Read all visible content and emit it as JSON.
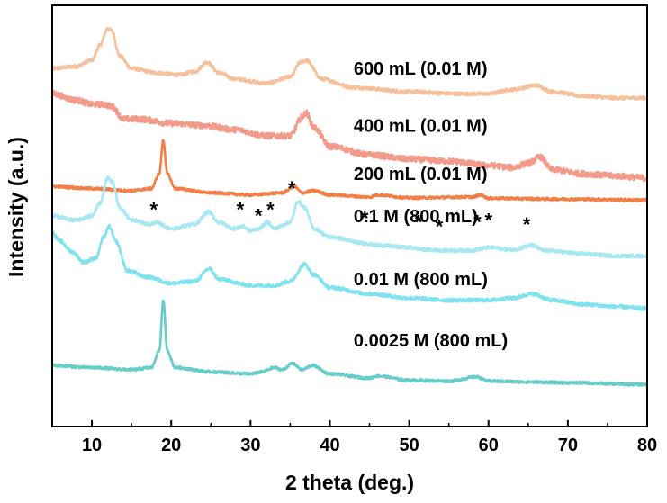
{
  "chart_data": {
    "type": "line",
    "title": "",
    "xlabel": "2 theta (deg.)",
    "ylabel": "Intensity (a.u.)",
    "xlim": [
      5,
      80
    ],
    "xticks": [
      10,
      20,
      30,
      40,
      50,
      60,
      70,
      80
    ],
    "ylim": [
      0,
      1
    ],
    "y_ticks_shown": false,
    "grid": false,
    "legend": "none; each curve is labeled directly",
    "series": [
      {
        "name": "600 mL (0.01 M)",
        "color": "#f7c09c",
        "noise": 0.004,
        "points": [
          [
            5,
            0.85
          ],
          [
            8,
            0.855
          ],
          [
            10,
            0.87
          ],
          [
            11,
            0.905
          ],
          [
            12,
            0.945
          ],
          [
            12.5,
            0.94
          ],
          [
            13.5,
            0.88
          ],
          [
            15,
            0.85
          ],
          [
            18,
            0.84
          ],
          [
            21,
            0.835
          ],
          [
            23,
            0.843
          ],
          [
            24.5,
            0.865
          ],
          [
            26,
            0.84
          ],
          [
            28,
            0.825
          ],
          [
            32,
            0.815
          ],
          [
            35,
            0.83
          ],
          [
            36.3,
            0.865
          ],
          [
            37,
            0.87
          ],
          [
            39,
            0.825
          ],
          [
            43,
            0.805
          ],
          [
            50,
            0.795
          ],
          [
            56,
            0.79
          ],
          [
            60,
            0.79
          ],
          [
            63,
            0.8
          ],
          [
            66,
            0.81
          ],
          [
            68,
            0.795
          ],
          [
            72,
            0.785
          ],
          [
            76,
            0.78
          ],
          [
            80,
            0.78
          ]
        ]
      },
      {
        "name": "400 mL (0.01 M)",
        "color": "#f29b8a",
        "noise": 0.007,
        "points": [
          [
            5,
            0.79
          ],
          [
            8,
            0.775
          ],
          [
            10,
            0.765
          ],
          [
            11.5,
            0.765
          ],
          [
            12.5,
            0.76
          ],
          [
            14,
            0.73
          ],
          [
            16,
            0.73
          ],
          [
            20,
            0.72
          ],
          [
            24,
            0.715
          ],
          [
            28,
            0.705
          ],
          [
            32,
            0.69
          ],
          [
            35,
            0.69
          ],
          [
            36.5,
            0.735
          ],
          [
            37,
            0.745
          ],
          [
            38,
            0.71
          ],
          [
            40,
            0.665
          ],
          [
            45,
            0.645
          ],
          [
            50,
            0.635
          ],
          [
            55,
            0.63
          ],
          [
            60,
            0.62
          ],
          [
            63,
            0.615
          ],
          [
            65,
            0.625
          ],
          [
            66.5,
            0.64
          ],
          [
            68,
            0.61
          ],
          [
            72,
            0.6
          ],
          [
            76,
            0.595
          ],
          [
            80,
            0.59
          ]
        ]
      },
      {
        "name": "200 mL (0.01 M)",
        "color": "#f27e45",
        "noise": 0.003,
        "points": [
          [
            5,
            0.57
          ],
          [
            10,
            0.565
          ],
          [
            15,
            0.56
          ],
          [
            17.5,
            0.565
          ],
          [
            18.5,
            0.6
          ],
          [
            19,
            0.68
          ],
          [
            19.5,
            0.6
          ],
          [
            20.5,
            0.565
          ],
          [
            25,
            0.555
          ],
          [
            30,
            0.55
          ],
          [
            34,
            0.555
          ],
          [
            35.5,
            0.57
          ],
          [
            36.5,
            0.555
          ],
          [
            38,
            0.56
          ],
          [
            40,
            0.55
          ],
          [
            45,
            0.545
          ],
          [
            46,
            0.55
          ],
          [
            50,
            0.543
          ],
          [
            58,
            0.545
          ],
          [
            59,
            0.55
          ],
          [
            60,
            0.542
          ],
          [
            70,
            0.54
          ],
          [
            80,
            0.538
          ]
        ]
      },
      {
        "name": "0.1 M (800 mL)",
        "color": "#a8e8f2",
        "noise": 0.004,
        "points": [
          [
            5,
            0.5
          ],
          [
            8,
            0.49
          ],
          [
            10,
            0.5
          ],
          [
            11,
            0.53
          ],
          [
            12,
            0.59
          ],
          [
            12.6,
            0.58
          ],
          [
            13.5,
            0.52
          ],
          [
            15,
            0.49
          ],
          [
            17.5,
            0.48
          ],
          [
            18,
            0.485
          ],
          [
            20,
            0.47
          ],
          [
            23,
            0.48
          ],
          [
            24.7,
            0.51
          ],
          [
            26,
            0.485
          ],
          [
            28,
            0.47
          ],
          [
            29,
            0.475
          ],
          [
            30,
            0.465
          ],
          [
            31,
            0.47
          ],
          [
            32.2,
            0.485
          ],
          [
            33,
            0.47
          ],
          [
            35,
            0.485
          ],
          [
            36,
            0.535
          ],
          [
            36.8,
            0.52
          ],
          [
            38,
            0.47
          ],
          [
            40,
            0.45
          ],
          [
            44.5,
            0.435
          ],
          [
            46,
            0.43
          ],
          [
            50,
            0.425
          ],
          [
            52,
            0.42
          ],
          [
            55,
            0.418
          ],
          [
            58,
            0.418
          ],
          [
            59,
            0.422
          ],
          [
            60,
            0.425
          ],
          [
            63,
            0.42
          ],
          [
            65.5,
            0.43
          ],
          [
            67,
            0.418
          ],
          [
            72,
            0.41
          ],
          [
            76,
            0.405
          ],
          [
            80,
            0.405
          ]
        ]
      },
      {
        "name": "0.01 M (800 mL)",
        "color": "#7fe2ee",
        "noise": 0.004,
        "points": [
          [
            5,
            0.46
          ],
          [
            6,
            0.44
          ],
          [
            7.5,
            0.415
          ],
          [
            9,
            0.39
          ],
          [
            10.5,
            0.4
          ],
          [
            11.5,
            0.45
          ],
          [
            12.2,
            0.475
          ],
          [
            13,
            0.44
          ],
          [
            14.5,
            0.37
          ],
          [
            17,
            0.355
          ],
          [
            20,
            0.34
          ],
          [
            23,
            0.345
          ],
          [
            24.8,
            0.375
          ],
          [
            26,
            0.35
          ],
          [
            30,
            0.335
          ],
          [
            33,
            0.335
          ],
          [
            35,
            0.345
          ],
          [
            36.8,
            0.385
          ],
          [
            38,
            0.36
          ],
          [
            40,
            0.33
          ],
          [
            45,
            0.315
          ],
          [
            50,
            0.305
          ],
          [
            55,
            0.3
          ],
          [
            60,
            0.3
          ],
          [
            63,
            0.305
          ],
          [
            65.5,
            0.315
          ],
          [
            68,
            0.3
          ],
          [
            72,
            0.29
          ],
          [
            76,
            0.285
          ],
          [
            80,
            0.28
          ]
        ]
      },
      {
        "name": "0.0025 M (800 mL)",
        "color": "#66cdc8",
        "noise": 0.003,
        "points": [
          [
            5,
            0.145
          ],
          [
            10,
            0.14
          ],
          [
            15,
            0.135
          ],
          [
            17.5,
            0.14
          ],
          [
            18.5,
            0.18
          ],
          [
            19,
            0.3
          ],
          [
            19.5,
            0.18
          ],
          [
            20.5,
            0.14
          ],
          [
            25,
            0.13
          ],
          [
            30,
            0.125
          ],
          [
            31.5,
            0.13
          ],
          [
            33,
            0.14
          ],
          [
            34,
            0.135
          ],
          [
            35.3,
            0.15
          ],
          [
            36.5,
            0.135
          ],
          [
            37.8,
            0.145
          ],
          [
            40,
            0.125
          ],
          [
            45,
            0.115
          ],
          [
            46,
            0.12
          ],
          [
            50,
            0.11
          ],
          [
            55,
            0.108
          ],
          [
            58.5,
            0.118
          ],
          [
            60,
            0.108
          ],
          [
            65,
            0.106
          ],
          [
            70,
            0.104
          ],
          [
            80,
            0.1
          ]
        ]
      }
    ],
    "annotations": [
      {
        "text": "600 mL (0.01 M)",
        "x": 43,
        "y": 0.835
      },
      {
        "text": "400 mL (0.01 M)",
        "x": 43,
        "y": 0.7
      },
      {
        "text": "200 mL (0.01 M)",
        "x": 43,
        "y": 0.585
      },
      {
        "text": "0.1 M (800 mL)",
        "x": 43,
        "y": 0.485
      },
      {
        "text": "0.01 M (800 mL)",
        "x": 43,
        "y": 0.335
      },
      {
        "text": "0.0025 M (800 mL)",
        "x": 43,
        "y": 0.19
      }
    ],
    "impurity_markers": {
      "text": "*",
      "x": [
        17.8,
        28.7,
        31,
        32.5,
        35.2,
        44.4,
        51.2,
        53.8,
        58.6,
        60,
        64.8
      ],
      "y": [
        0.52,
        0.52,
        0.505,
        0.52,
        0.57,
        0.5,
        0.49,
        0.48,
        0.49,
        0.495,
        0.485
      ]
    }
  }
}
